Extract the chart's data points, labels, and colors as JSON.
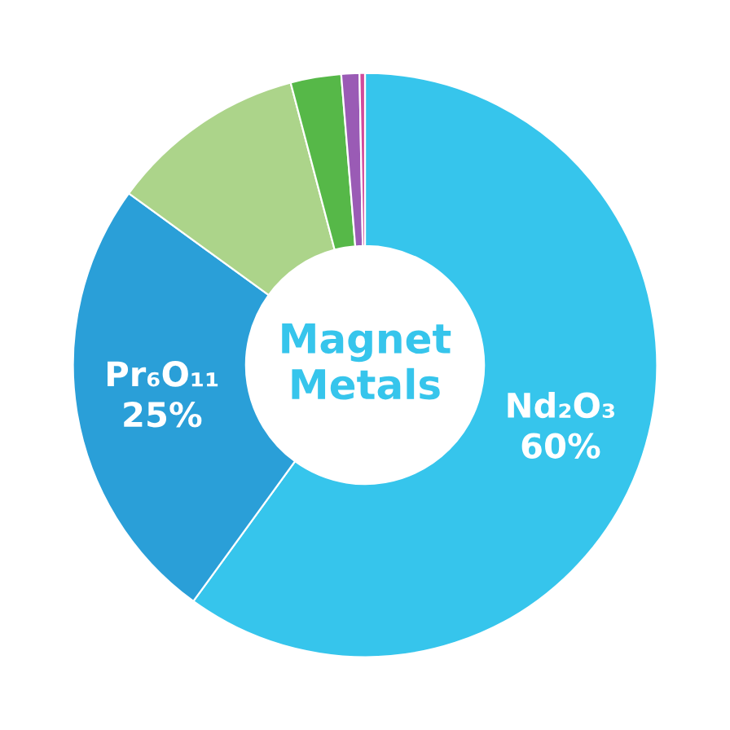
{
  "chart_data": {
    "type": "donut",
    "title": "Magnet Metals",
    "categories": [
      "Nd₂O₃",
      "Pr₆O₁₁",
      null,
      null,
      null,
      null
    ],
    "values": [
      60,
      25,
      10.9,
      2.8,
      1,
      0.3
    ],
    "value_labels": [
      "60%",
      "25%",
      null,
      null,
      null,
      null
    ],
    "colors": [
      "#36c5ec",
      "#2a9fd8",
      "#acd48a",
      "#56b848",
      "#9a5bb5",
      "#d04a9a"
    ],
    "legend": false
  }
}
